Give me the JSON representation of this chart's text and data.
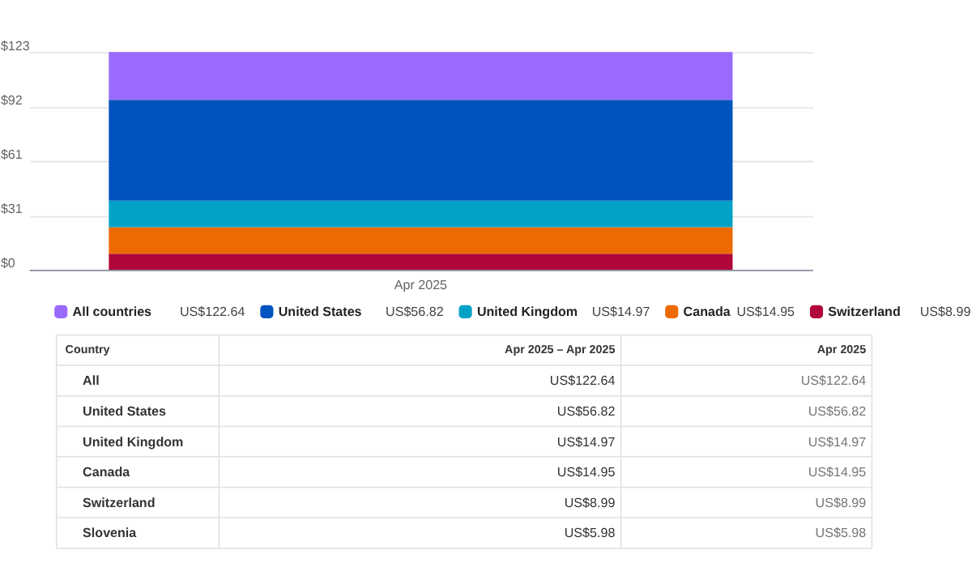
{
  "chart_data": {
    "type": "bar",
    "stacked": true,
    "categories": [
      "Apr 2025"
    ],
    "series": [
      {
        "name": "Switzerland",
        "color": "#b0063a",
        "values": [
          8.99
        ]
      },
      {
        "name": "Canada",
        "color": "#ed6a02",
        "values": [
          14.95
        ]
      },
      {
        "name": "United Kingdom",
        "color": "#01a2c6",
        "values": [
          14.97
        ]
      },
      {
        "name": "United States",
        "color": "#0154be",
        "values": [
          56.82
        ]
      },
      {
        "name": "All countries",
        "color": "#9a6afd",
        "values": [
          26.91
        ]
      }
    ],
    "ylim": [
      0,
      122.64
    ],
    "yticks": [
      {
        "value": 0,
        "label": "$0"
      },
      {
        "value": 30.66,
        "label": "$31"
      },
      {
        "value": 61.32,
        "label": "$61"
      },
      {
        "value": 91.98,
        "label": "$92"
      },
      {
        "value": 122.64,
        "label": "$123"
      }
    ],
    "grid": "y",
    "legend": "bottom",
    "annotations": [
      "US$8.99",
      "US$14.95",
      "US$14.97",
      "US$56.82",
      "US$122.64",
      "Country",
      "Apr 2025 – Apr 2025",
      "Apr 2025",
      "All",
      "US$122.64",
      "US$122.64",
      "United States",
      "US$56.82",
      "US$56.82",
      "United Kingdom",
      "US$14.97",
      "US$14.97",
      "Canada",
      "US$14.95",
      "US$14.95",
      "Switzerland",
      "US$8.99",
      "US$8.99",
      "Slovenia",
      "US$5.98",
      "US$5.98"
    ]
  }
}
